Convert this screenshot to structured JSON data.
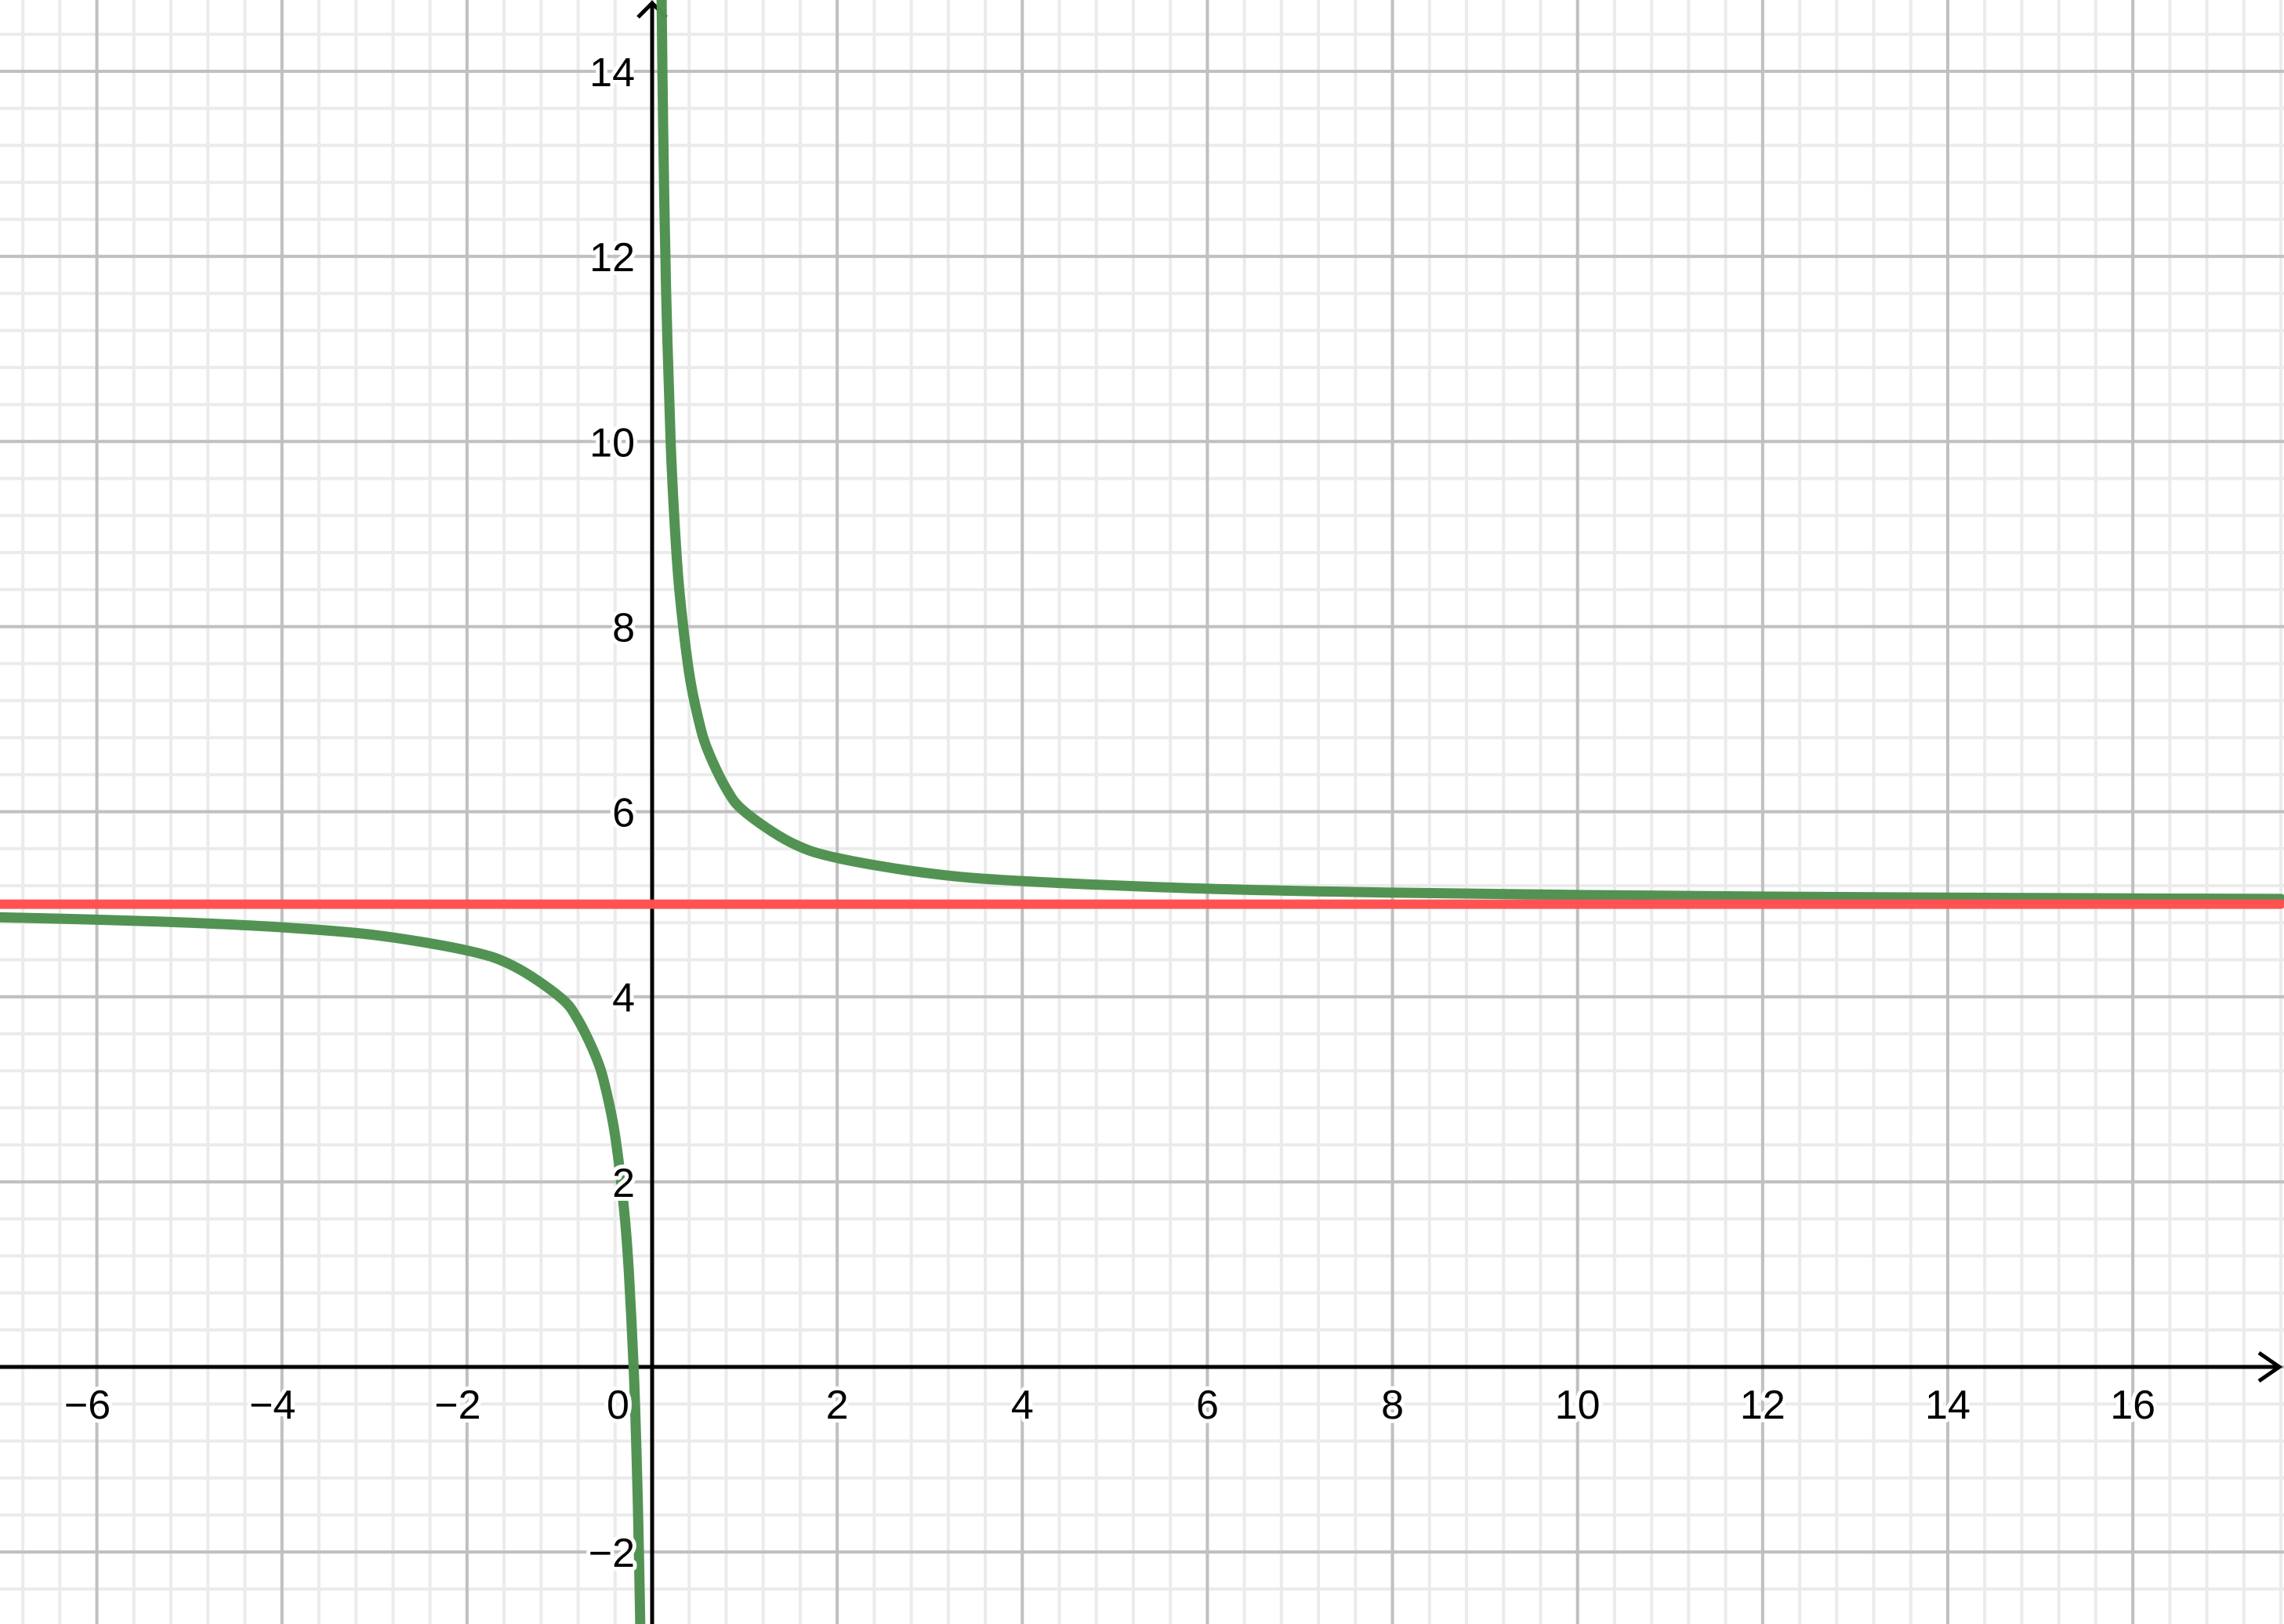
{
  "chart_data": {
    "type": "line",
    "title": "",
    "xlabel": "",
    "ylabel": "",
    "xlim": [
      -7.04,
      17.6
    ],
    "ylim": [
      -2.78,
      14.75
    ],
    "grid": true,
    "major_grid_step": 2,
    "minor_grid_step": 0.4,
    "x_ticks": [
      "−6",
      "−4",
      "−2",
      "0",
      "2",
      "4",
      "6",
      "8",
      "10",
      "12",
      "14",
      "16"
    ],
    "x_tick_values": [
      -6,
      -4,
      -2,
      0,
      2,
      4,
      6,
      8,
      10,
      12,
      14,
      16
    ],
    "y_ticks": [
      "−2",
      "2",
      "4",
      "6",
      "8",
      "10",
      "12",
      "14"
    ],
    "y_tick_values": [
      -2,
      2,
      4,
      6,
      8,
      10,
      12,
      14
    ],
    "series": [
      {
        "color": "#4f9150",
        "branches": [
          {
            "x": [
              -7.04,
              -6,
              -5,
              -4,
              -3,
              -2,
              -1.5,
              -1,
              -0.8,
              -0.6,
              -0.5,
              -0.4,
              -0.3,
              -0.25,
              -0.2,
              -0.18,
              -0.16,
              -0.15,
              -0.14,
              -0.13,
              -0.125
            ],
            "y": [
              4.858,
              4.833,
              4.8,
              4.75,
              4.667,
              4.5,
              4.333,
              4,
              3.75,
              3.333,
              3,
              2.5,
              1.667,
              1,
              0,
              -0.556,
              -1.25,
              -1.667,
              -2.143,
              -2.692,
              -3
            ]
          },
          {
            "x": [
              0.067,
              0.07,
              0.08,
              0.09,
              0.1,
              0.12,
              0.15,
              0.2,
              0.25,
              0.3,
              0.4,
              0.5,
              0.6,
              0.8,
              1,
              1.5,
              2,
              3,
              4,
              6,
              8,
              10,
              12,
              14,
              16,
              17.6
            ],
            "y": [
              19.93,
              19.29,
              17.5,
              16.11,
              15,
              13.333,
              11.667,
              10,
              9,
              8.333,
              7.5,
              7,
              6.667,
              6.25,
              6,
              5.667,
              5.5,
              5.333,
              5.25,
              5.167,
              5.125,
              5.1,
              5.083,
              5.071,
              5.0625,
              5.057
            ]
          }
        ]
      },
      {
        "color": "#ff5050",
        "branches": [
          {
            "x": [
              -7.04,
              17.6
            ],
            "y": [
              5,
              5
            ]
          }
        ]
      }
    ]
  }
}
